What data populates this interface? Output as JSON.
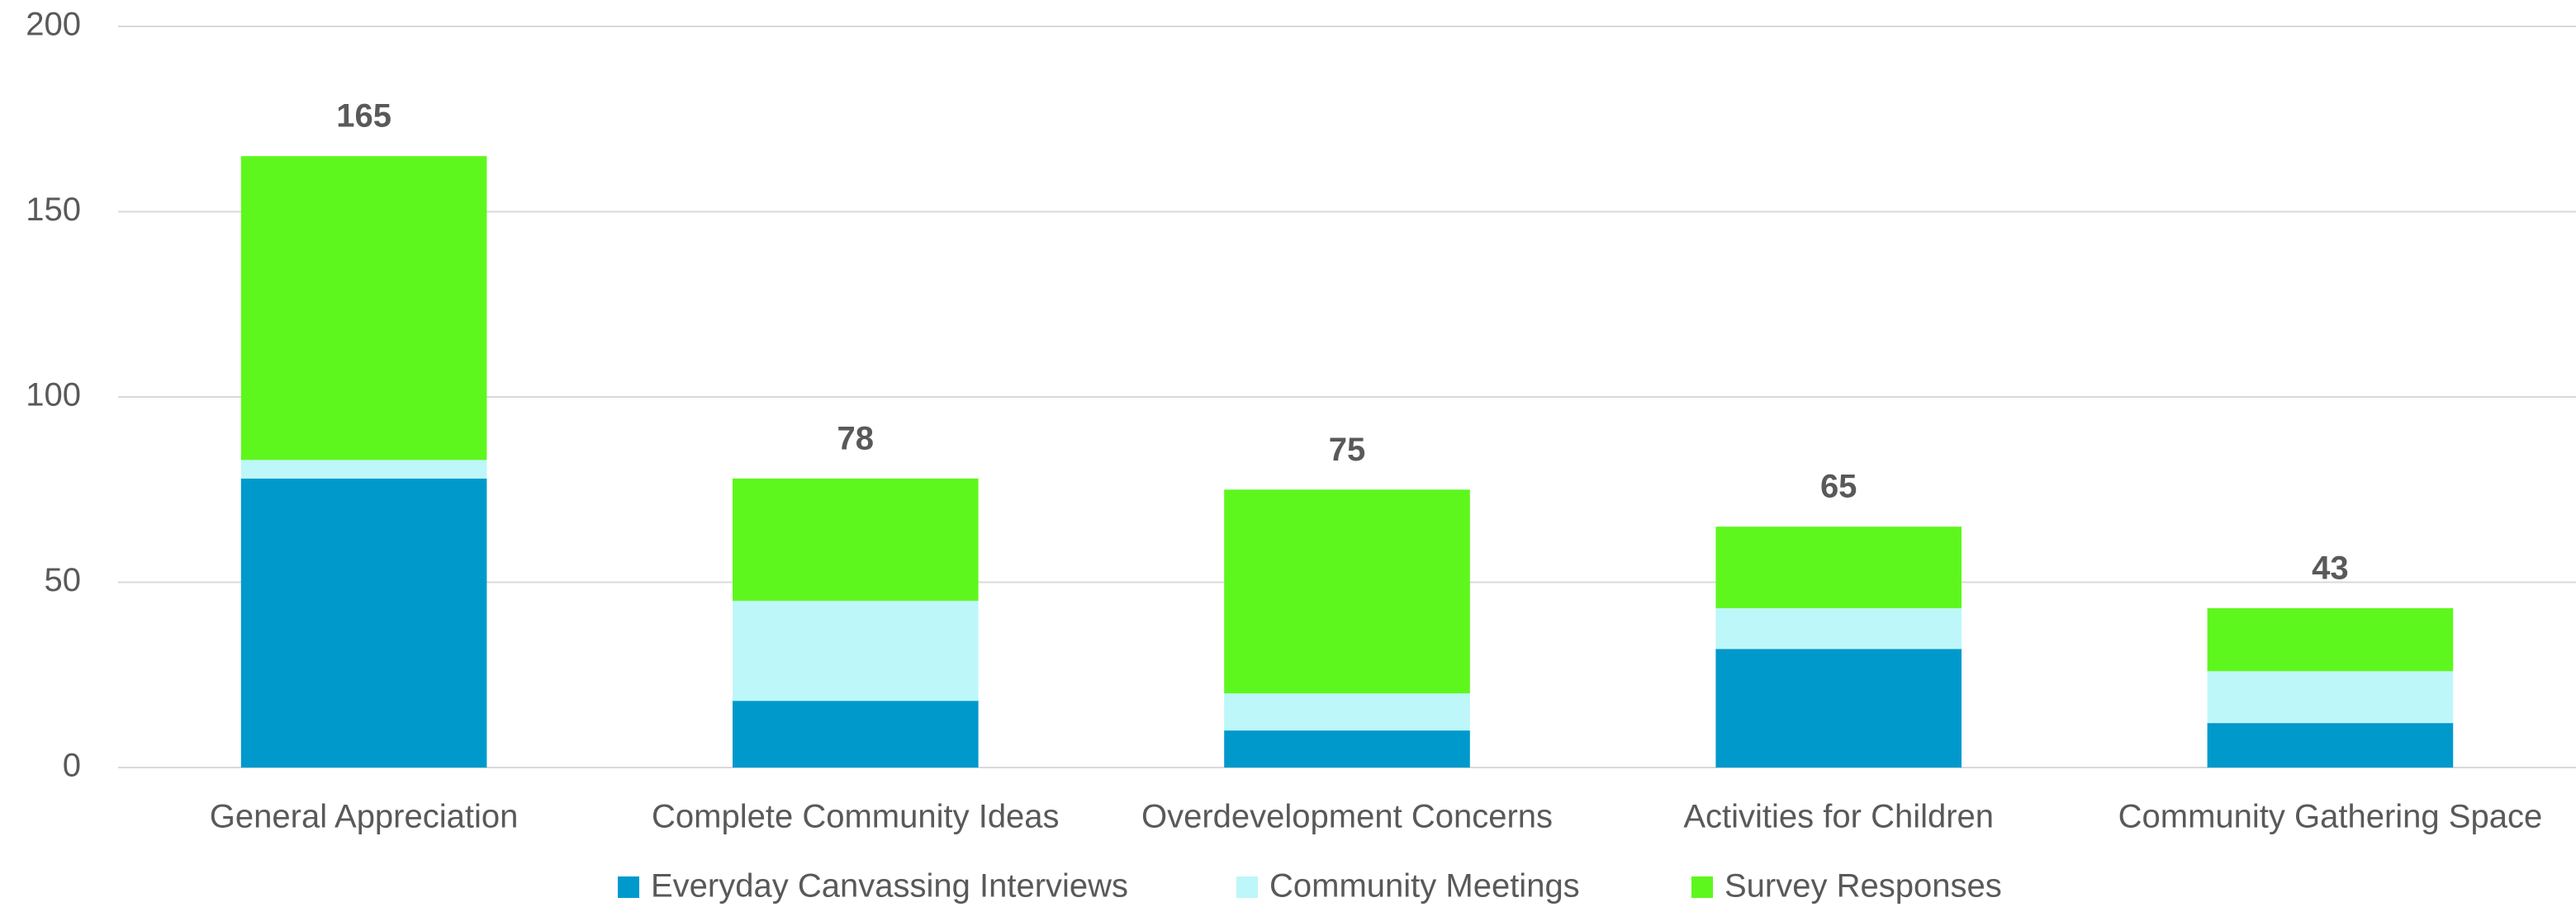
{
  "chart_data": {
    "type": "stacked_bar",
    "categories": [
      "General Appreciation",
      "Complete Community Ideas",
      "Overdevelopment Concerns",
      "Activities for Children",
      "Community Gathering Space"
    ],
    "series": [
      {
        "name": "Everyday Canvassing Interviews",
        "color": "#0099cc",
        "values": [
          78,
          18,
          10,
          32,
          12
        ]
      },
      {
        "name": "Community Meetings",
        "color": "#bdf7f9",
        "values": [
          5,
          27,
          10,
          11,
          14
        ]
      },
      {
        "name": "Survey Responses",
        "color": "#5ef71d",
        "values": [
          82,
          33,
          55,
          22,
          17
        ]
      }
    ],
    "totals": [
      165,
      78,
      75,
      65,
      43
    ],
    "ylim": [
      0,
      200
    ],
    "yticks": [
      0,
      50,
      100,
      150,
      200
    ],
    "grid": true,
    "legend": "bottom"
  }
}
